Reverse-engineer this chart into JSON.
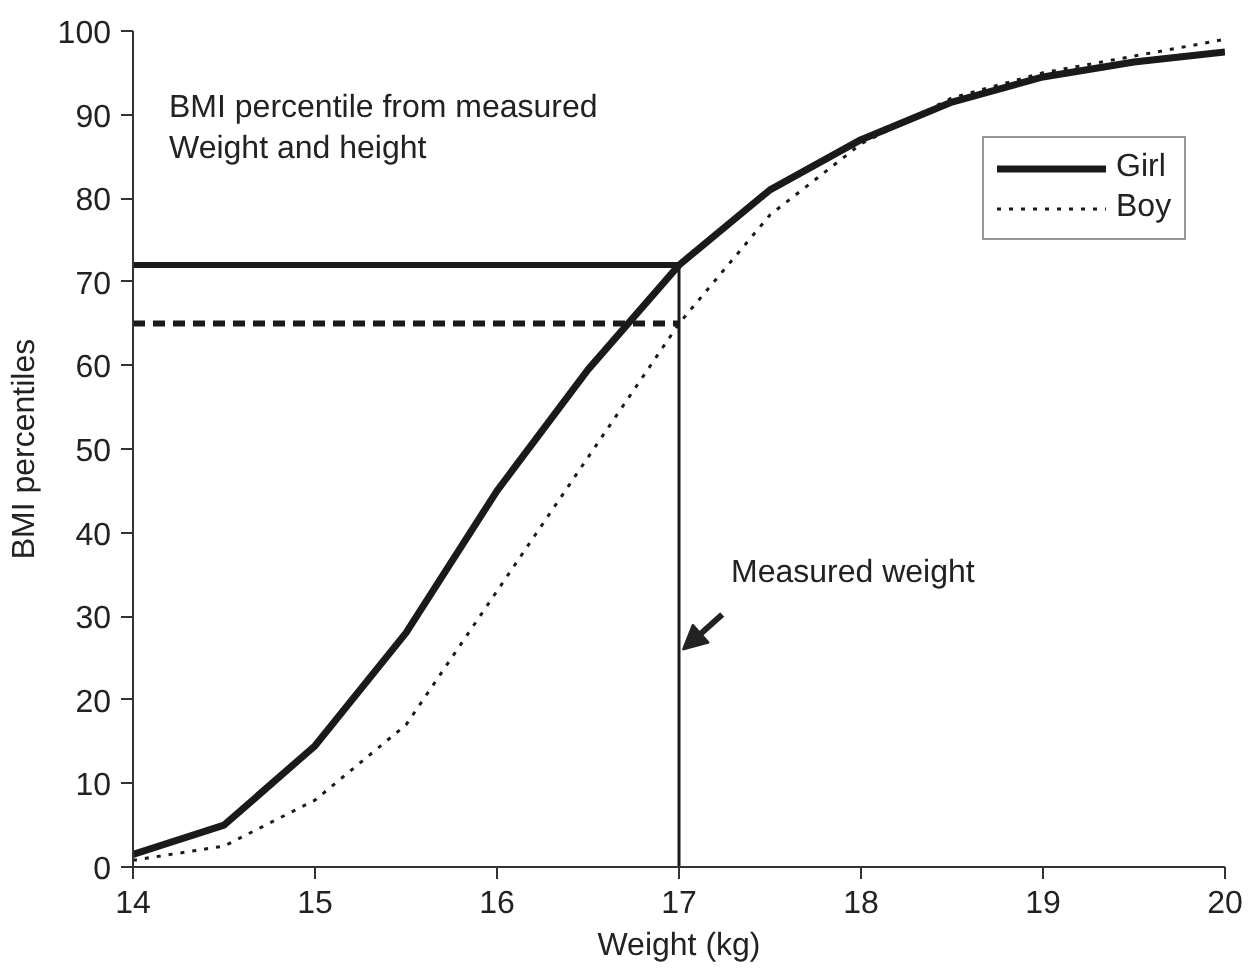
{
  "chart_data": {
    "type": "line",
    "xlabel": "Weight (kg)",
    "ylabel": "BMI percentiles",
    "x": [
      14,
      14.5,
      15,
      15.5,
      16,
      16.5,
      17,
      17.5,
      18,
      18.5,
      19,
      19.5,
      20
    ],
    "series": [
      {
        "name": "Girl",
        "color": "#1a1a1a",
        "line_style": "solid",
        "values": [
          1.5,
          5,
          14.5,
          28,
          45,
          59.5,
          72,
          81,
          87,
          91.5,
          94.5,
          96.3,
          97.5
        ]
      },
      {
        "name": "Boy",
        "color": "#1a1a1a",
        "line_style": "dotted",
        "values": [
          0.8,
          2.5,
          8,
          17,
          33,
          49,
          65,
          78,
          86.5,
          92,
          95,
          97,
          99
        ]
      }
    ],
    "xlim": [
      14,
      20
    ],
    "ylim": [
      0,
      100
    ],
    "xticks": [
      14,
      15,
      16,
      17,
      18,
      19,
      20
    ],
    "yticks": [
      0,
      10,
      20,
      30,
      40,
      50,
      60,
      70,
      80,
      90,
      100
    ],
    "ref_lines": [
      {
        "axis": "y",
        "value": 72,
        "color": "#1a1a1a",
        "line_style": "solid"
      },
      {
        "axis": "y",
        "value": 65,
        "color": "#1a1a1a",
        "line_style": "dashed"
      },
      {
        "axis": "x",
        "value": 17,
        "color": "#1a1a1a",
        "line_style": "solid"
      }
    ],
    "annotations": [
      "BMI percentile from measured\nWeight and height",
      {
        "text": "Measured weight",
        "x": 17,
        "y": 26
      }
    ],
    "legend": "top right",
    "grid": false,
    "marker": "none"
  }
}
